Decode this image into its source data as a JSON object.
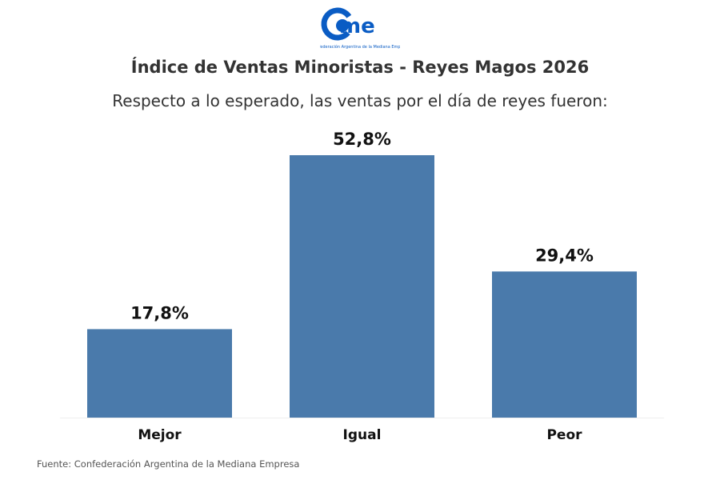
{
  "logo": {
    "text": "came",
    "tagline": "Confederación Argentina de la Mediana Empresa",
    "color": "#0a5cc4"
  },
  "chart_data": {
    "type": "bar",
    "title": "Índice de Ventas Minoristas - Reyes Magos 2026",
    "subtitle": "Respecto a lo esperado, las ventas por el día de reyes fueron:",
    "categories": [
      "Mejor",
      "Igual",
      "Peor"
    ],
    "values": [
      17.8,
      52.8,
      29.4
    ],
    "data_labels": [
      "17,8%",
      "52,8%",
      "29,4%"
    ],
    "unit": "%",
    "ylim": [
      0,
      52.8
    ],
    "grid": false,
    "bar_color": "#4a7aab"
  },
  "source": "Fuente: Confederación Argentina de la Mediana Empresa"
}
